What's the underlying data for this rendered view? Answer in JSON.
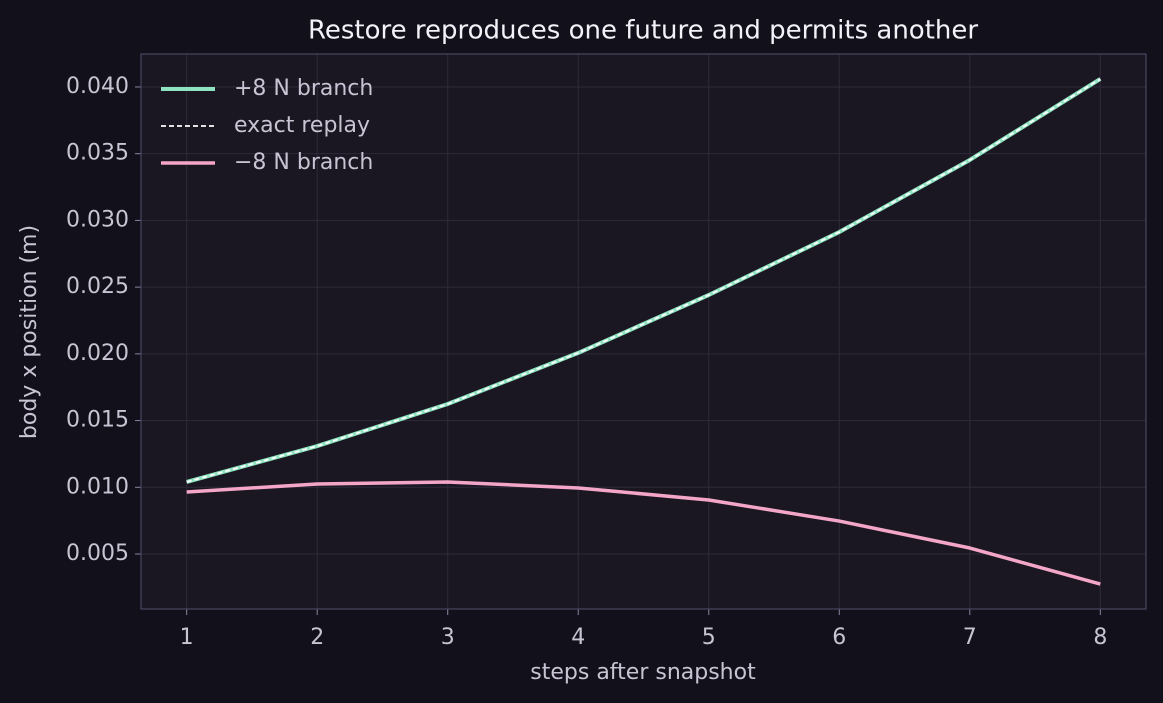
{
  "chart_data": {
    "type": "line",
    "title": "Restore reproduces one future and permits another",
    "x_label": "steps after snapshot",
    "y_label": "body x position (m)",
    "x": [
      1,
      2,
      3,
      4,
      5,
      6,
      7,
      8
    ],
    "series": [
      {
        "name": "+8 N branch",
        "color": "#8fe3c0",
        "width": 4,
        "dash": "none",
        "values": [
          0.0104,
          0.01309,
          0.01624,
          0.02007,
          0.02441,
          0.02913,
          0.03453,
          0.0406
        ]
      },
      {
        "name": "exact replay",
        "color": "#ffffff",
        "width": 1.8,
        "dash": "5 3",
        "values": [
          0.0104,
          0.01309,
          0.01624,
          0.02007,
          0.02441,
          0.02913,
          0.03453,
          0.0406
        ]
      },
      {
        "name": "−8 N branch",
        "color": "#f4a6c8",
        "width": 3.5,
        "dash": "none",
        "values": [
          0.00965,
          0.01025,
          0.0104,
          0.00995,
          0.00905,
          0.00747,
          0.00545,
          0.00275
        ]
      }
    ],
    "xlim": [
      0.65,
      8.35
    ],
    "ylim": [
      0.00088,
      0.04247
    ],
    "xticks": [
      1,
      2,
      3,
      4,
      5,
      6,
      7,
      8
    ],
    "yticks": [
      0.005,
      {
        "value": 0.01,
        "label": "0.010"
      },
      0.015,
      {
        "value": 0.02,
        "label": "0.020"
      },
      0.025,
      {
        "value": 0.03,
        "label": "0.030"
      },
      0.035,
      {
        "value": 0.04,
        "label": "0.040"
      }
    ],
    "grid": true,
    "legend": "upper-left"
  }
}
